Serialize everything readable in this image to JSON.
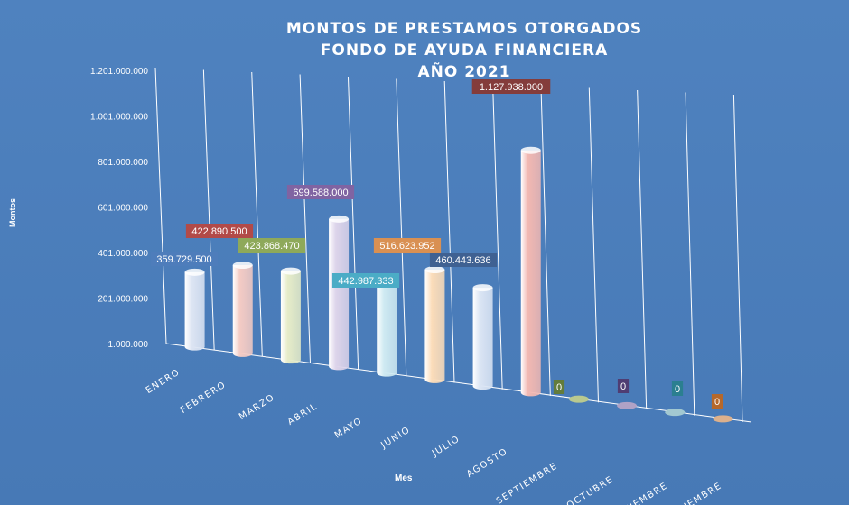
{
  "chart_data": {
    "type": "bar",
    "style": "3d-cylinder",
    "title": [
      "MONTOS  DE  PRESTAMOS  OTORGADOS",
      "FONDO  DE  AYUDA  FINANCIERA",
      "AÑO  2021"
    ],
    "xlabel": "Mes",
    "ylabel": "Montos",
    "ylim": [
      1000000,
      1201000000
    ],
    "yticks": [
      "1.201.000.000",
      "1.001.000.000",
      "801.000.000",
      "601.000.000",
      "401.000.000",
      "201.000.000",
      "1.000.000"
    ],
    "ytick_values": [
      1201000000,
      1001000000,
      801000000,
      601000000,
      401000000,
      201000000,
      1000000
    ],
    "categories": [
      "ENERO",
      "FEBRERO",
      "MARZO",
      "ABRIL",
      "MAYO",
      "JUNIO",
      "JULIO",
      "AGOSTO",
      "SEPTIEMBRE",
      "OCTUBRE",
      "NOVIEMBRE",
      "DICIEMBRE"
    ],
    "values": [
      359729500,
      422890500,
      423868470,
      699588000,
      442987333,
      516623952,
      460443636,
      1127938000,
      0,
      0,
      0,
      0
    ],
    "data_labels": [
      "359.729.500",
      "422.890.500",
      "423.868.470",
      "699.588.000",
      "442.987.333",
      "516.623.952",
      "460.443.636",
      "1.127.938.000",
      "0",
      "0",
      "0",
      "0"
    ],
    "colors": [
      "#dde5f3",
      "#f4cbc4",
      "#e6ecc8",
      "#ddd4ea",
      "#cfeaf2",
      "#fbdcb9",
      "#dbe5f4",
      "#f2b8b2",
      "#b9c98f",
      "#b0a2c6",
      "#a2c8d1",
      "#dcb08c"
    ],
    "label_colors": [
      "#4e7dbb",
      "#b24a48",
      "#8ea95a",
      "#8064a2",
      "#4bacc6",
      "#d99052",
      "#3f6192",
      "#843c3b",
      "#637c3b",
      "#4f3d73",
      "#2b7f90",
      "#b5682b"
    ],
    "grid": true,
    "legend": "none"
  }
}
